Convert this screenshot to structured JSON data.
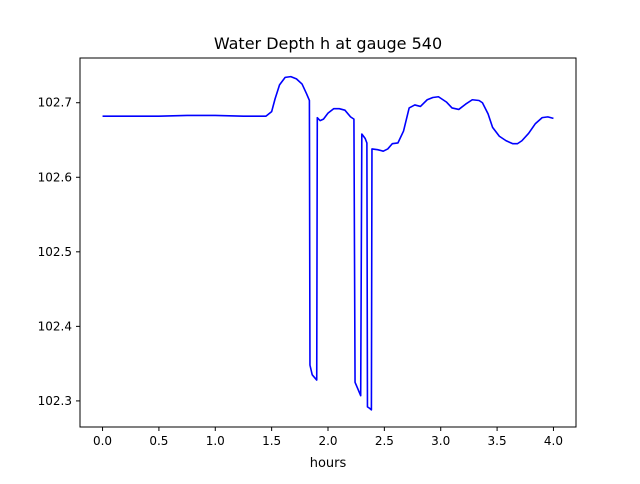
{
  "chart_data": {
    "type": "line",
    "title": "Water Depth h at gauge 540",
    "xlabel": "hours",
    "ylabel": "",
    "xlim": [
      -0.2,
      4.2
    ],
    "ylim": [
      102.265,
      102.76
    ],
    "xticks": [
      0.0,
      0.5,
      1.0,
      1.5,
      2.0,
      2.5,
      3.0,
      3.5,
      4.0
    ],
    "xtick_labels": [
      "0.0",
      "0.5",
      "1.0",
      "1.5",
      "2.0",
      "2.5",
      "3.0",
      "3.5",
      "4.0"
    ],
    "yticks": [
      102.3,
      102.4,
      102.5,
      102.6,
      102.7
    ],
    "ytick_labels": [
      "102.3",
      "102.4",
      "102.5",
      "102.6",
      "102.7"
    ],
    "grid": false,
    "series": [
      {
        "color": "#0000ff",
        "x": [
          0.0,
          0.25,
          0.5,
          0.75,
          1.0,
          1.25,
          1.45,
          1.5,
          1.53,
          1.57,
          1.62,
          1.67,
          1.72,
          1.77,
          1.81,
          1.835,
          1.84,
          1.86,
          1.9,
          1.905,
          1.93,
          1.96,
          2.0,
          2.05,
          2.1,
          2.15,
          2.2,
          2.23,
          2.24,
          2.265,
          2.29,
          2.3,
          2.33,
          2.345,
          2.35,
          2.37,
          2.385,
          2.39,
          2.44,
          2.49,
          2.53,
          2.57,
          2.62,
          2.67,
          2.72,
          2.77,
          2.82,
          2.88,
          2.93,
          2.98,
          3.05,
          3.1,
          3.16,
          3.22,
          3.28,
          3.34,
          3.37,
          3.42,
          3.46,
          3.52,
          3.58,
          3.64,
          3.68,
          3.72,
          3.78,
          3.84,
          3.9,
          3.95,
          4.0
        ],
        "y": [
          102.682,
          102.682,
          102.682,
          102.683,
          102.683,
          102.682,
          102.682,
          102.688,
          102.705,
          102.724,
          102.734,
          102.735,
          102.732,
          102.725,
          102.712,
          102.703,
          102.348,
          102.335,
          102.328,
          102.68,
          102.676,
          102.678,
          102.686,
          102.692,
          102.692,
          102.69,
          102.681,
          102.678,
          102.325,
          102.316,
          102.307,
          102.658,
          102.652,
          102.646,
          102.292,
          102.29,
          102.288,
          102.638,
          102.637,
          102.635,
          102.638,
          102.645,
          102.646,
          102.662,
          102.693,
          102.697,
          102.695,
          102.704,
          102.707,
          102.708,
          102.701,
          102.693,
          102.691,
          102.698,
          102.704,
          102.703,
          102.7,
          102.685,
          102.667,
          102.655,
          102.649,
          102.645,
          102.645,
          102.649,
          102.659,
          102.672,
          102.68,
          102.681,
          102.679
        ]
      }
    ]
  }
}
